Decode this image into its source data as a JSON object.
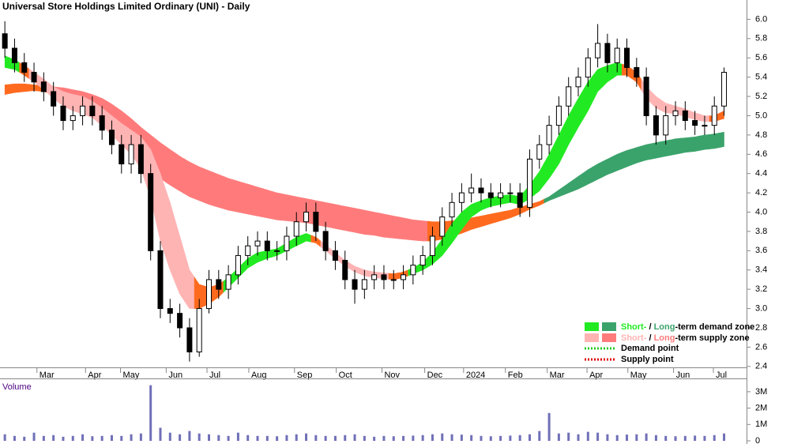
{
  "chart_data": {
    "type": "candlestick",
    "title": "Universal Store Holdings Limited Ordinary (UNI) - Daily",
    "volume_title": "Volume",
    "xlim": [
      -0.5,
      75.5
    ],
    "xticks": [
      {
        "value": 3.3,
        "label": "Mar"
      },
      {
        "value": 8.3,
        "label": "Apr"
      },
      {
        "value": 11.9,
        "label": "May"
      },
      {
        "value": 16.6,
        "label": "Jun"
      },
      {
        "value": 20.8,
        "label": "Jul"
      },
      {
        "value": 25.1,
        "label": "Aug"
      },
      {
        "value": 29.8,
        "label": "Sep"
      },
      {
        "value": 34.1,
        "label": "Oct"
      },
      {
        "value": 38.8,
        "label": "Nov"
      },
      {
        "value": 43.2,
        "label": "Dec"
      },
      {
        "value": 47.2,
        "label": "2024"
      },
      {
        "value": 51.5,
        "label": "Feb"
      },
      {
        "value": 55.8,
        "label": "Mar"
      },
      {
        "value": 59.9,
        "label": "Apr"
      },
      {
        "value": 64.1,
        "label": "May"
      },
      {
        "value": 68.8,
        "label": "Jun"
      },
      {
        "value": 72.9,
        "label": "Jul"
      }
    ],
    "ylim": [
      2.39,
      6.2
    ],
    "yticks": [
      2.4,
      2.6,
      2.8,
      {
        "value": 3,
        "label": "3.0"
      },
      3.2,
      3.4,
      3.6,
      3.8,
      {
        "value": 4,
        "label": "4.0"
      },
      4.2,
      4.4,
      4.6,
      4.8,
      {
        "value": 5,
        "label": "5.0"
      },
      5.2,
      5.4,
      5.6,
      5.8,
      {
        "value": 6,
        "label": "6.0"
      }
    ],
    "open": [
      5.85,
      5.7,
      5.55,
      5.45,
      5.35,
      5.25,
      5.1,
      4.95,
      5.0,
      5.1,
      5.0,
      4.85,
      4.7,
      4.5,
      4.7,
      4.4,
      3.6,
      3.0,
      2.95,
      2.8,
      2.55,
      3.0,
      3.3,
      3.2,
      3.35,
      3.55,
      3.65,
      3.7,
      3.6,
      3.6,
      3.75,
      3.9,
      4.0,
      3.8,
      3.6,
      3.5,
      3.3,
      3.2,
      3.3,
      3.35,
      3.3,
      3.3,
      3.35,
      3.45,
      3.55,
      3.75,
      3.95,
      4.1,
      4.2,
      4.25,
      4.2,
      4.15,
      4.2,
      4.2,
      4.05,
      4.55,
      4.7,
      4.9,
      5.1,
      5.3,
      5.4,
      5.6,
      5.75,
      5.55,
      5.7,
      5.5,
      5.4,
      5.0,
      4.8,
      5.0,
      5.05,
      4.95,
      4.9,
      4.9,
      5.1
    ],
    "high": [
      5.98,
      5.8,
      5.65,
      5.55,
      5.45,
      5.35,
      5.2,
      5.1,
      5.2,
      5.2,
      5.1,
      4.95,
      4.8,
      4.8,
      4.8,
      4.5,
      3.7,
      3.1,
      3.05,
      2.9,
      3.1,
      3.4,
      3.4,
      3.45,
      3.65,
      3.75,
      3.8,
      3.8,
      3.7,
      3.85,
      4.0,
      4.1,
      4.1,
      3.9,
      3.7,
      3.6,
      3.4,
      3.4,
      3.45,
      3.45,
      3.4,
      3.45,
      3.55,
      3.65,
      3.85,
      4.05,
      4.2,
      4.3,
      4.4,
      4.35,
      4.3,
      4.3,
      4.3,
      4.3,
      4.65,
      4.8,
      5.0,
      5.2,
      5.4,
      5.5,
      5.7,
      5.95,
      5.85,
      5.8,
      5.8,
      5.6,
      5.5,
      5.1,
      5.1,
      5.15,
      5.15,
      5.05,
      5.0,
      5.2,
      5.5
    ],
    "low": [
      5.6,
      5.45,
      5.35,
      5.25,
      5.15,
      5.0,
      4.85,
      4.85,
      4.9,
      4.9,
      4.75,
      4.6,
      4.4,
      4.4,
      4.3,
      3.5,
      2.9,
      2.85,
      2.7,
      2.45,
      2.5,
      2.95,
      3.1,
      3.1,
      3.25,
      3.45,
      3.55,
      3.5,
      3.5,
      3.5,
      3.65,
      3.8,
      3.7,
      3.5,
      3.4,
      3.2,
      3.05,
      3.1,
      3.2,
      3.2,
      3.2,
      3.2,
      3.25,
      3.35,
      3.45,
      3.65,
      3.85,
      4.0,
      4.1,
      4.1,
      4.05,
      4.05,
      4.1,
      3.95,
      3.95,
      4.45,
      4.6,
      4.8,
      5.0,
      5.2,
      5.3,
      5.5,
      5.45,
      5.45,
      5.4,
      5.3,
      4.9,
      4.7,
      4.7,
      4.9,
      4.85,
      4.8,
      4.8,
      4.8,
      5.0
    ],
    "close": [
      5.7,
      5.55,
      5.45,
      5.35,
      5.25,
      5.1,
      4.95,
      5.0,
      5.1,
      5.0,
      4.85,
      4.7,
      4.5,
      4.7,
      4.4,
      3.6,
      3.0,
      2.95,
      2.8,
      2.55,
      3.0,
      3.3,
      3.2,
      3.35,
      3.55,
      3.65,
      3.7,
      3.6,
      3.6,
      3.75,
      3.9,
      4.0,
      3.8,
      3.6,
      3.5,
      3.3,
      3.2,
      3.3,
      3.35,
      3.3,
      3.3,
      3.35,
      3.45,
      3.55,
      3.75,
      3.95,
      4.1,
      4.2,
      4.25,
      4.2,
      4.15,
      4.2,
      4.2,
      4.05,
      4.55,
      4.7,
      4.9,
      5.1,
      5.3,
      5.4,
      5.6,
      5.75,
      5.55,
      5.7,
      5.5,
      5.4,
      5.0,
      4.8,
      5.0,
      5.05,
      4.95,
      4.9,
      4.9,
      5.1,
      5.45
    ],
    "up_color": "#ffffff",
    "down_color": "#000000",
    "short_band": {
      "upper": [
        5.62,
        5.58,
        5.52,
        5.45,
        5.38,
        5.3,
        5.25,
        5.22,
        5.2,
        5.15,
        5.08,
        5.0,
        4.92,
        4.85,
        4.78,
        4.65,
        4.4,
        4.1,
        3.75,
        3.4,
        3.25,
        3.22,
        3.25,
        3.32,
        3.42,
        3.52,
        3.58,
        3.6,
        3.62,
        3.68,
        3.74,
        3.78,
        3.74,
        3.66,
        3.58,
        3.5,
        3.44,
        3.4,
        3.38,
        3.37,
        3.36,
        3.38,
        3.42,
        3.48,
        3.58,
        3.72,
        3.88,
        4.0,
        4.08,
        4.12,
        4.15,
        4.17,
        4.18,
        4.16,
        4.28,
        4.42,
        4.6,
        4.8,
        5.0,
        5.18,
        5.35,
        5.48,
        5.52,
        5.55,
        5.52,
        5.45,
        5.3,
        5.2,
        5.13,
        5.1,
        5.07,
        5.03,
        5.0,
        5.0,
        5.05
      ],
      "lower": [
        5.5,
        5.48,
        5.42,
        5.35,
        5.27,
        5.18,
        5.1,
        5.05,
        5.02,
        4.98,
        4.9,
        4.8,
        4.7,
        4.6,
        4.45,
        4.15,
        3.7,
        3.4,
        3.15,
        3.0,
        3.0,
        3.05,
        3.12,
        3.22,
        3.32,
        3.42,
        3.48,
        3.52,
        3.55,
        3.6,
        3.65,
        3.7,
        3.68,
        3.6,
        3.52,
        3.44,
        3.38,
        3.34,
        3.32,
        3.31,
        3.3,
        3.32,
        3.36,
        3.4,
        3.46,
        3.55,
        3.68,
        3.82,
        3.95,
        4.02,
        4.06,
        4.08,
        4.1,
        4.08,
        4.14,
        4.22,
        4.35,
        4.5,
        4.7,
        4.88,
        5.05,
        5.25,
        5.35,
        5.42,
        5.42,
        5.35,
        5.18,
        5.08,
        5.03,
        5.02,
        4.99,
        4.96,
        4.94,
        4.94,
        4.97
      ],
      "zone": [
        "demand",
        "demand",
        "transition",
        "supply",
        "supply",
        "supply",
        "supply",
        "supply",
        "supply",
        "supply",
        "supply",
        "supply",
        "supply",
        "supply",
        "supply",
        "supply",
        "supply",
        "supply",
        "supply",
        "supply",
        "transition",
        "transition",
        "transition",
        "demand",
        "demand",
        "demand",
        "demand",
        "demand",
        "demand",
        "demand",
        "demand",
        "demand",
        "transition",
        "supply",
        "supply",
        "supply",
        "supply",
        "supply",
        "supply",
        "supply",
        "transition",
        "transition",
        "demand",
        "demand",
        "demand",
        "demand",
        "demand",
        "demand",
        "demand",
        "demand",
        "demand",
        "demand",
        "demand",
        "demand",
        "demand",
        "demand",
        "demand",
        "demand",
        "demand",
        "demand",
        "demand",
        "demand",
        "demand",
        "demand",
        "transition",
        "transition",
        "supply",
        "supply",
        "supply",
        "supply",
        "supply",
        "supply",
        "supply",
        "transition",
        "transition"
      ]
    },
    "long_band": {
      "upper": [
        5.32,
        5.33,
        5.33,
        5.32,
        5.31,
        5.3,
        5.29,
        5.27,
        5.25,
        5.22,
        5.18,
        5.12,
        5.05,
        4.97,
        4.88,
        4.8,
        4.72,
        4.65,
        4.58,
        4.52,
        4.47,
        4.43,
        4.39,
        4.35,
        4.32,
        4.29,
        4.26,
        4.23,
        4.2,
        4.18,
        4.16,
        4.14,
        4.12,
        4.1,
        4.08,
        4.06,
        4.04,
        4.02,
        4.0,
        3.98,
        3.96,
        3.94,
        3.92,
        3.91,
        3.9,
        3.9,
        3.91,
        3.92,
        3.94,
        3.96,
        3.98,
        4.0,
        4.02,
        4.05,
        4.08,
        4.11,
        4.16,
        4.23,
        4.3,
        4.37,
        4.44,
        4.5,
        4.55,
        4.6,
        4.64,
        4.67,
        4.7,
        4.72,
        4.74,
        4.76,
        4.77,
        4.78,
        4.8,
        4.81,
        4.83
      ],
      "lower": [
        5.22,
        5.24,
        5.25,
        5.26,
        5.25,
        5.22,
        5.18,
        5.14,
        5.1,
        5.05,
        4.98,
        4.88,
        4.78,
        4.65,
        4.55,
        4.45,
        4.35,
        4.28,
        4.22,
        4.16,
        4.12,
        4.08,
        4.05,
        4.02,
        4.0,
        3.98,
        3.96,
        3.94,
        3.92,
        3.91,
        3.9,
        3.89,
        3.87,
        3.85,
        3.83,
        3.81,
        3.79,
        3.77,
        3.76,
        3.74,
        3.73,
        3.72,
        3.71,
        3.7,
        3.7,
        3.72,
        3.75,
        3.78,
        3.82,
        3.85,
        3.88,
        3.91,
        3.94,
        3.98,
        4.03,
        4.07,
        4.12,
        4.16,
        4.2,
        4.24,
        4.29,
        4.34,
        4.39,
        4.43,
        4.47,
        4.51,
        4.54,
        4.56,
        4.58,
        4.6,
        4.62,
        4.63,
        4.65,
        4.66,
        4.68
      ],
      "zone": [
        "transition",
        "transition",
        "transition",
        "transition",
        "transition",
        "supply",
        "supply",
        "supply",
        "supply",
        "supply",
        "supply",
        "supply",
        "supply",
        "supply",
        "supply",
        "supply",
        "supply",
        "supply",
        "supply",
        "supply",
        "supply",
        "supply",
        "supply",
        "supply",
        "supply",
        "supply",
        "supply",
        "supply",
        "supply",
        "supply",
        "supply",
        "supply",
        "supply",
        "supply",
        "supply",
        "supply",
        "supply",
        "supply",
        "supply",
        "supply",
        "supply",
        "supply",
        "supply",
        "supply",
        "transition",
        "transition",
        "transition",
        "transition",
        "transition",
        "transition",
        "transition",
        "transition",
        "transition",
        "transition",
        "transition",
        "transition",
        "demand",
        "demand",
        "demand",
        "demand",
        "demand",
        "demand",
        "demand",
        "demand",
        "demand",
        "demand",
        "demand",
        "demand",
        "demand",
        "demand",
        "demand",
        "demand",
        "demand",
        "demand",
        "demand"
      ]
    },
    "colors": {
      "short": {
        "demand": "#22ea22",
        "supply": "#ffb4b4",
        "transition": "#ff6a1f"
      },
      "long": {
        "demand": "#3aa36b",
        "supply": "#ff7b7b",
        "transition": "#ff6a1f"
      }
    },
    "volume": [
      400000,
      300000,
      250000,
      500000,
      300000,
      350000,
      250000,
      300000,
      400000,
      280000,
      300000,
      350000,
      300000,
      400000,
      450000,
      3400000,
      800000,
      500000,
      400000,
      600000,
      450000,
      400000,
      350000,
      300000,
      500000,
      350000,
      300000,
      300000,
      280000,
      350000,
      400000,
      450000,
      350000,
      300000,
      300000,
      350000,
      400000,
      300000,
      250000,
      300000,
      280000,
      300000,
      320000,
      350000,
      400000,
      450000,
      400000,
      380000,
      350000,
      300000,
      280000,
      300000,
      320000,
      350000,
      400000,
      600000,
      1700000,
      450000,
      500000,
      400000,
      550000,
      500000,
      400000,
      350000,
      380000,
      400000,
      450000,
      350000,
      300000,
      280000,
      300000,
      320000,
      300000,
      350000,
      450000
    ],
    "volume_color": "#7070b8",
    "volume_ylim": [
      0,
      3500000
    ],
    "volume_yticks": [
      {
        "value": 3000000,
        "label": "3M"
      },
      {
        "value": 2000000,
        "label": "2M"
      },
      {
        "value": 1000000,
        "label": "1M"
      },
      0
    ],
    "legend": {
      "demand_zone": {
        "short": "Short-",
        "sep": " / ",
        "long": "Long",
        "rest": "-term demand zone"
      },
      "supply_zone": {
        "short": "Short-",
        "sep": " / ",
        "long": "Long",
        "rest": "-term supply zone"
      },
      "demand_point": "Demand point",
      "supply_point": "Supply point",
      "demand_point_color": "#22cc22",
      "supply_point_color": "#e00000"
    }
  }
}
